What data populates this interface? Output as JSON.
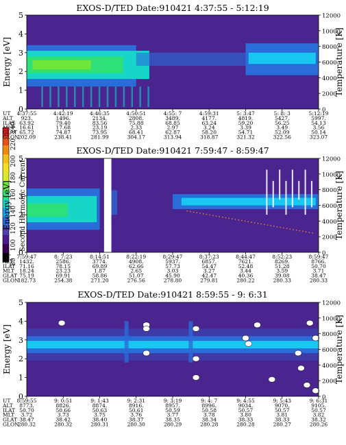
{
  "page": {
    "colorbar": {
      "label": "Second Harmonic Current",
      "ticks": [
        "240",
        "220",
        "200",
        "180",
        "160",
        "140",
        "120",
        "100",
        "80"
      ],
      "colors": [
        "#000000",
        "#3a0050",
        "#4a1a8c",
        "#4c3fb0",
        "#2a6cd8",
        "#19a4ee",
        "#17d6c8",
        "#2ee07a",
        "#6ee63a",
        "#d8ea2c",
        "#f0e020",
        "#f2c018",
        "#ee8a14",
        "#e8501a",
        "#e01e1e"
      ]
    },
    "panels": [
      {
        "title": "EXOS-D/TED   Date:910421  4:37:55 - 5:12:19",
        "ylabel": "Energy [eV]",
        "y2label": "Temperature [K]",
        "yticks": [
          "0",
          "1",
          "2",
          "3",
          "4",
          "5"
        ],
        "y2ticks": [
          "0",
          "2000",
          "4000",
          "6000",
          "8000",
          "10000",
          "12000"
        ],
        "row_labels": [
          "UT",
          "ALT",
          "ILAT",
          "MLT",
          "GLAT",
          "GLON"
        ],
        "columns": [
          [
            "4:37:55",
            "923.",
            "63.92",
            "16.61",
            "65.72",
            "202.09"
          ],
          [
            "4:42:19",
            "1496.",
            "79.40",
            "17.68",
            "74.87",
            "238.41"
          ],
          [
            "4:46:35",
            "2134.",
            "83.56",
            "23.19",
            "73.95",
            "281.99"
          ],
          [
            "4:50:51",
            "2808.",
            "75.88",
            "2.33",
            "68.41",
            "304.17"
          ],
          [
            "4:55: 7",
            "3489.",
            "68.85",
            "2.97",
            "62.87",
            "313.94"
          ],
          [
            "4:59:31",
            "4177.",
            "63.24",
            "3.24",
            "58.20",
            "318.87"
          ],
          [
            "5: 3:47",
            "4819.",
            "59.20",
            "3.39",
            "54.71",
            "321.32"
          ],
          [
            "5: 8: 3",
            "5427.",
            "56.25",
            "3.49",
            "52.09",
            "322.56"
          ],
          [
            "5:12:19",
            "5997.",
            "54.13",
            "3.56",
            "50.14",
            "323.07"
          ]
        ]
      },
      {
        "title": "EXOS-D/TED   Date:910421  7:59:47 - 8:59:47",
        "ylabel": "Energy [eV]",
        "y2label": "Temperature [K]",
        "yticks": [
          "0",
          "1",
          "2",
          "3",
          "4",
          "5"
        ],
        "y2ticks": [
          "0",
          "2000",
          "4000",
          "6000",
          "8000",
          "10000",
          "12000"
        ],
        "row_labels": [
          "UT",
          "ALT",
          "ILAT",
          "MLT",
          "GLAT",
          "GLON"
        ],
        "columns": [
          [
            "7:59:47",
            "1432.",
            "71.16",
            "18.24",
            "75.19",
            "182.73"
          ],
          [
            "8: 7:23",
            "2586.",
            "78.15",
            "23.23",
            "69.91",
            "254.38"
          ],
          [
            "8:14:51",
            "3774.",
            "69.89",
            "1.87",
            "58.86",
            "271.20"
          ],
          [
            "8:22:19",
            "4908.",
            "62.66",
            "2.65",
            "51.07",
            "276.56"
          ],
          [
            "8:29:47",
            "5937.",
            "57.73",
            "3.03",
            "45.90",
            "278.80"
          ],
          [
            "8:37:23",
            "6857.",
            "54.47",
            "3.27",
            "42.47",
            "279.81"
          ],
          [
            "8:44:47",
            "7621.",
            "52.48",
            "3.44",
            "40.36",
            "280.22"
          ],
          [
            "8:52:23",
            "8269.",
            "51.28",
            "3.59",
            "39.08",
            "280.33"
          ],
          [
            "8:59:47",
            "8766.",
            "50.70",
            "3.71",
            "38.47",
            "280.33"
          ]
        ]
      },
      {
        "title": "EXOS-D/TED   Date:910421  8:59:55 - 9: 6:31",
        "ylabel": "Energy [eV]",
        "y2label": "Temperature [K]",
        "yticks": [
          "0",
          "1",
          "2",
          "3",
          "4",
          "5"
        ],
        "y2ticks": [
          "0",
          "2000",
          "4000",
          "6000",
          "8000",
          "10000",
          "12000"
        ],
        "row_labels": [
          "UT",
          "ALT",
          "ILAT",
          "MLT",
          "GLAT",
          "GLON"
        ],
        "columns": [
          [
            "8:59:55",
            "8773.",
            "50.70",
            "3.72",
            "38.47",
            "280.32"
          ],
          [
            "9: 0:51",
            "8826.",
            "50.66",
            "3.73",
            "38.42",
            "280.32"
          ],
          [
            "9: 1:43",
            "8874.",
            "50.63",
            "3.75",
            "38.40",
            "280.31"
          ],
          [
            "9: 2:31",
            "8916.",
            "50.61",
            "3.76",
            "38.37",
            "280.30"
          ],
          [
            "9: 3:19",
            "8957.",
            "50.59",
            "3.77",
            "38.35",
            "280.29"
          ],
          [
            "9: 4: 7",
            "8996.",
            "50.58",
            "3.78",
            "38.34",
            "280.28"
          ],
          [
            "9: 4:55",
            "9034.",
            "50.57",
            "3.80",
            "38.33",
            "280.28"
          ],
          [
            "9: 5:43",
            "9070.",
            "50.57",
            "3.81",
            "38.33",
            "280.27"
          ],
          [
            "9: 6:31",
            "9105.",
            "50.57",
            "3.82",
            "38.32",
            "280.26"
          ]
        ]
      }
    ]
  },
  "chart_data": [
    {
      "type": "heatmap",
      "title": "EXOS-D/TED   Date:910421  4:37:55 - 5:12:19",
      "xlabel": "UT",
      "ylabel": "Energy [eV]",
      "y2label": "Temperature [K]",
      "ylim": [
        0,
        5
      ],
      "y2lim": [
        0,
        12000
      ],
      "x": [
        "4:37:55",
        "4:42:19",
        "4:46:35",
        "4:50:51",
        "4:55: 7",
        "4:59:31",
        "5: 3:47",
        "5: 8: 3",
        "5:12:19"
      ],
      "color_scale_label": "Second Harmonic Current",
      "color_scale_range": [
        80,
        240
      ],
      "bands": [
        {
          "x_from": "4:37:55",
          "x_to": "4:50:51",
          "energy_range": [
            1.2,
            3.4
          ],
          "level": 180
        },
        {
          "x_from": "4:50:51",
          "x_to": "5: 3:47",
          "energy_range": [
            2.3,
            3.0
          ],
          "level": 120
        },
        {
          "x_from": "5: 3:47",
          "x_to": "5:12:19",
          "energy_range": [
            1.8,
            3.5
          ],
          "level": 140
        }
      ]
    },
    {
      "type": "heatmap",
      "title": "EXOS-D/TED   Date:910421  7:59:47 - 8:59:47",
      "xlabel": "UT",
      "ylabel": "Energy [eV]",
      "y2label": "Temperature [K]",
      "ylim": [
        0,
        5
      ],
      "y2lim": [
        0,
        12000
      ],
      "x": [
        "7:59:47",
        "8: 7:23",
        "8:14:51",
        "8:22:19",
        "8:29:47",
        "8:37:23",
        "8:44:47",
        "8:52:23",
        "8:59:47"
      ],
      "color_scale_label": "Second Harmonic Current",
      "color_scale_range": [
        80,
        240
      ],
      "bands": [
        {
          "x_from": "7:59:47",
          "x_to": "8:14:51",
          "energy_range": [
            1.2,
            3.4
          ],
          "level": 170
        },
        {
          "x_from": "8:29:47",
          "x_to": "8:59:47",
          "energy_range": [
            2.3,
            3.1
          ],
          "level": 150
        }
      ],
      "data_gap": {
        "x_from": "8:14:51",
        "x_to": "8:22:19"
      }
    },
    {
      "type": "heatmap",
      "title": "EXOS-D/TED   Date:910421  8:59:55 - 9: 6:31",
      "xlabel": "UT",
      "ylabel": "Energy [eV]",
      "y2label": "Temperature [K]",
      "ylim": [
        0,
        5
      ],
      "y2lim": [
        0,
        12000
      ],
      "x": [
        "8:59:55",
        "9: 0:51",
        "9: 1:43",
        "9: 2:31",
        "9: 3:19",
        "9: 4: 7",
        "9: 4:55",
        "9: 5:43",
        "9: 6:31"
      ],
      "color_scale_label": "Second Harmonic Current",
      "color_scale_range": [
        80,
        240
      ],
      "bands": [
        {
          "x_from": "8:59:55",
          "x_to": "9: 6:31",
          "energy_range": [
            2.3,
            3.2
          ],
          "level": 150
        }
      ]
    }
  ]
}
